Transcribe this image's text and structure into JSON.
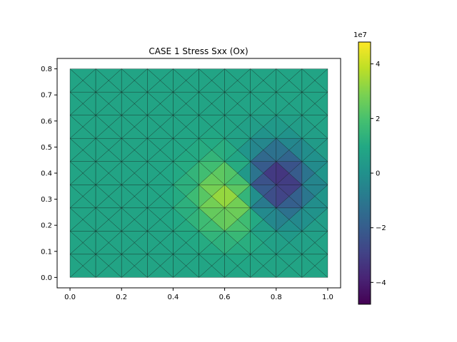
{
  "chart_data": {
    "type": "heatmap",
    "title": "CASE 1  Stress Sxx (Ox)",
    "xlabel": "",
    "ylabel": "",
    "xlim": [
      -0.05,
      1.05
    ],
    "ylim": [
      -0.04,
      0.84
    ],
    "x_ticks": [
      0.0,
      0.2,
      0.4,
      0.6,
      0.8,
      1.0
    ],
    "x_tick_labels": [
      "0.0",
      "0.2",
      "0.4",
      "0.6",
      "0.8",
      "1.0"
    ],
    "y_ticks": [
      0.0,
      0.1,
      0.2,
      0.3,
      0.4,
      0.5,
      0.6,
      0.7,
      0.8
    ],
    "y_tick_labels": [
      "0.0",
      "0.1",
      "0.2",
      "0.3",
      "0.4",
      "0.5",
      "0.6",
      "0.7",
      "0.8"
    ],
    "domain": {
      "x": [
        0.0,
        1.0
      ],
      "y": [
        0.0,
        0.8
      ]
    },
    "mesh": {
      "columns": 10,
      "rows": 9,
      "edge_color": "#000000"
    },
    "colormap": "viridis",
    "colorbar": {
      "min": -48000000,
      "max": 48000000,
      "ticks": [
        -40000000,
        -20000000,
        0,
        20000000,
        40000000
      ],
      "tick_labels": [
        "−4",
        "−2",
        "0",
        "2",
        "4"
      ],
      "multiplier_label": "1e7"
    },
    "background_value": 8000000,
    "hotspots": [
      {
        "x": 0.65,
        "y": 0.32,
        "value": 48000000
      },
      {
        "x": 0.78,
        "y": 0.36,
        "value": -48000000
      }
    ],
    "spread": 0.1
  }
}
